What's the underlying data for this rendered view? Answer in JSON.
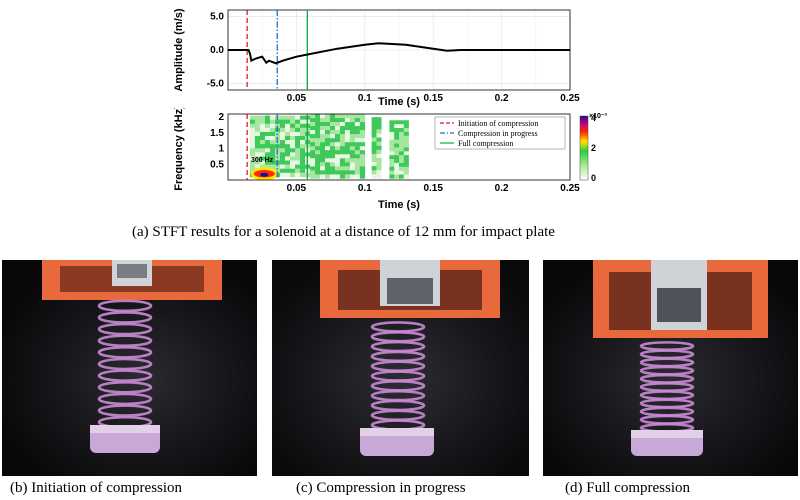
{
  "figure": {
    "caption_a": "(a) STFT results for a solenoid at a distance of 12 mm for impact plate",
    "caption_b": "(b) Initiation of compression",
    "caption_c": "(c) Compression in progress",
    "caption_d": "(d) Full compression"
  },
  "colors": {
    "initiation": "#e8141e",
    "progress": "#1a6fd0",
    "full": "#11a84a",
    "signal": "#000000",
    "spring": "#c98bd4",
    "housing": "#e86a3c"
  },
  "chart_data": [
    {
      "type": "line",
      "xlabel": "Time (s)",
      "ylabel": "Amplitude (m/s)",
      "xlim": [
        0,
        0.25
      ],
      "ylim": [
        -6,
        6
      ],
      "xticks": [
        "0.05",
        "0.1",
        "0.15",
        "0.2",
        "0.25"
      ],
      "yticks": [
        "5.0",
        "0.0",
        "-5.0"
      ],
      "grid": true,
      "series": [
        {
          "x": [
            0,
            0.012,
            0.015,
            0.016,
            0.017,
            0.02,
            0.025,
            0.028,
            0.03,
            0.035,
            0.04,
            0.05,
            0.06,
            0.07,
            0.08,
            0.09,
            0.1,
            0.11,
            0.12,
            0.13,
            0.14,
            0.15,
            0.16,
            0.17,
            0.18,
            0.2,
            0.22,
            0.25
          ],
          "y": [
            0,
            0,
            0,
            -0.5,
            -1.6,
            -1.3,
            -1.0,
            -1.9,
            -1.6,
            -2.0,
            -1.6,
            -1.0,
            -0.6,
            -0.2,
            0.2,
            0.5,
            0.8,
            1.0,
            0.9,
            0.8,
            0.5,
            0.2,
            -0.1,
            0,
            0,
            0,
            0,
            0
          ]
        }
      ],
      "markers": [
        {
          "name": "Initiation of compression",
          "x": 0.014,
          "style": "dashed"
        },
        {
          "name": "Compression in progress",
          "x": 0.036,
          "style": "dashdot"
        },
        {
          "name": "Full compression",
          "x": 0.058,
          "style": "solid"
        }
      ]
    },
    {
      "type": "heatmap",
      "xlabel": "Time (s)",
      "ylabel": "Frequency (kHz)",
      "xlim": [
        0,
        0.25
      ],
      "ylim": [
        0,
        2.1
      ],
      "xticks": [
        "0.05",
        "0.1",
        "0.15",
        "0.2",
        "0.25"
      ],
      "yticks": [
        "2",
        "1.5",
        "1",
        "0.5"
      ],
      "annotation": "300 Hz",
      "colorbar": {
        "max_label": "4",
        "mid_label": "2",
        "min_label": "0",
        "exponent": "×10⁻³",
        "range": [
          0,
          0.004
        ]
      },
      "legend": [
        "Initiation of compression",
        "Compression in progress",
        "Full compression"
      ],
      "legend_position": "top-right",
      "blocks": [
        {
          "x0": 0.016,
          "x1": 0.06,
          "f0": 0.1,
          "f1": 2.05,
          "level": 0.35
        },
        {
          "x0": 0.06,
          "x1": 0.1,
          "f0": 0.05,
          "f1": 2.1,
          "level": 0.3
        },
        {
          "x0": 0.105,
          "x1": 0.112,
          "f0": 0.05,
          "f1": 2.0,
          "level": 0.25
        },
        {
          "x0": 0.118,
          "x1": 0.132,
          "f0": 0.05,
          "f1": 1.9,
          "level": 0.3
        },
        {
          "x0": 0.018,
          "x1": 0.035,
          "f0": 0.05,
          "f1": 0.35,
          "level": 0.95
        }
      ]
    }
  ]
}
